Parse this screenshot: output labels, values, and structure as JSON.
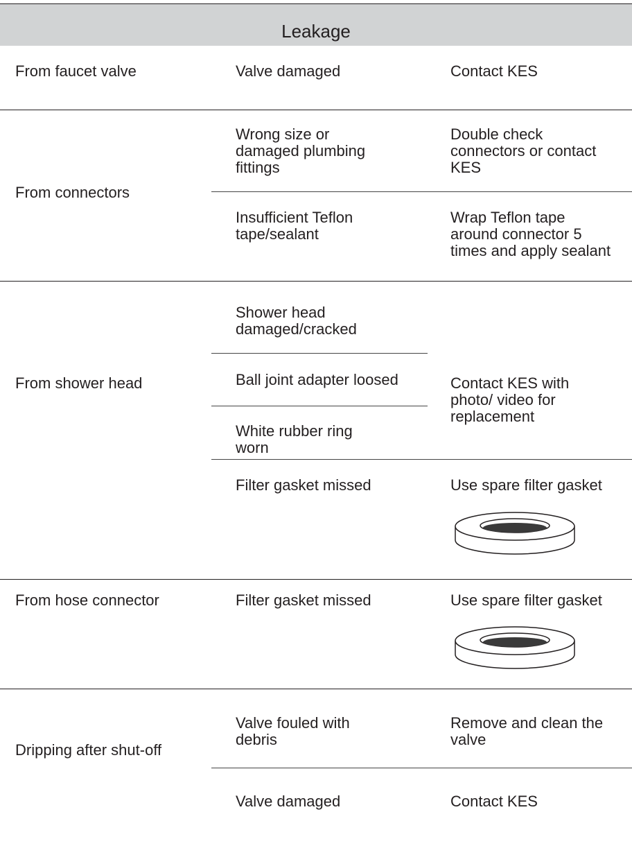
{
  "header": {
    "title": "Leakage"
  },
  "groups": [
    {
      "problem": "From faucet valve",
      "causes": [
        {
          "cause": "Valve damaged",
          "solution": "Contact KES"
        }
      ]
    },
    {
      "problem": "From connectors",
      "causes": [
        {
          "cause": "Wrong size or damaged plumbing fittings",
          "solution": "Double check connectors or contact KES"
        },
        {
          "cause": "Insufficient Teflon tape/sealant",
          "solution": "Wrap Teflon tape around connector 5 times and apply sealant"
        }
      ]
    },
    {
      "problem": "From shower head",
      "causes": [
        {
          "cause": "Shower head damaged/cracked"
        },
        {
          "cause": "Ball joint adapter loosed"
        },
        {
          "cause": "White rubber ring worn"
        },
        {
          "cause": "Filter gasket missed",
          "solution": "Use spare filter gasket"
        }
      ],
      "shared_solution": "Contact KES with photo/ video for replacement"
    },
    {
      "problem": "From hose connector",
      "causes": [
        {
          "cause": "Filter gasket missed",
          "solution": "Use spare filter gasket"
        }
      ]
    },
    {
      "problem": "Dripping after shut-off",
      "causes": [
        {
          "cause": "Valve fouled with debris",
          "solution": "Remove and clean the valve"
        },
        {
          "cause": "Valve damaged",
          "solution": "Contact KES"
        }
      ]
    }
  ]
}
